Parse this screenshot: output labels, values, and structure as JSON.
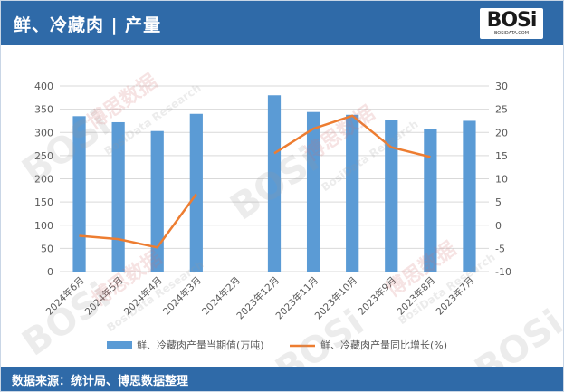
{
  "header": {
    "title": "鲜、冷藏肉 | 产量",
    "logo_text": "BOSi",
    "logo_sub": "BOSIDATA.COM"
  },
  "footer": {
    "source": "数据来源：统计局、博思数据整理"
  },
  "watermark": {
    "brand": "BOSi",
    "cn": "博思数据",
    "en": "BosiData Research"
  },
  "colors": {
    "header_bg": "#2f6aa8",
    "bar": "#5b9bd5",
    "line": "#ed7d31",
    "axis_text": "#595959",
    "grid": "#d9d9d9"
  },
  "chart_data": {
    "type": "bar",
    "categories": [
      "2024年6月",
      "2024年5月",
      "2024年4月",
      "2024年3月",
      "2024年2月",
      "2023年12月",
      "2023年11月",
      "2023年10月",
      "2023年9月",
      "2023年8月",
      "2023年7月"
    ],
    "series": [
      {
        "name": "鲜、冷藏肉产量当期值(万吨)",
        "type": "bar",
        "axis": "left",
        "values": [
          335,
          322,
          303,
          340,
          null,
          380,
          344,
          338,
          326,
          308,
          325
        ]
      },
      {
        "name": "鲜、冷藏肉产量同比增长(%)",
        "type": "line",
        "axis": "right",
        "values": [
          -2.3,
          -3.0,
          -4.8,
          6.7,
          null,
          15.5,
          20.8,
          23.6,
          16.8,
          14.7,
          null
        ]
      }
    ],
    "ylim_left": [
      0,
      400
    ],
    "yticks_left": [
      0,
      50,
      100,
      150,
      200,
      250,
      300,
      350,
      400
    ],
    "ylim_right": [
      -10,
      30
    ],
    "yticks_right": [
      -10,
      -5,
      0,
      5,
      10,
      15,
      20,
      25,
      30
    ],
    "grid": true,
    "legend": "bottom",
    "xlabel": "",
    "ylabel": ""
  }
}
